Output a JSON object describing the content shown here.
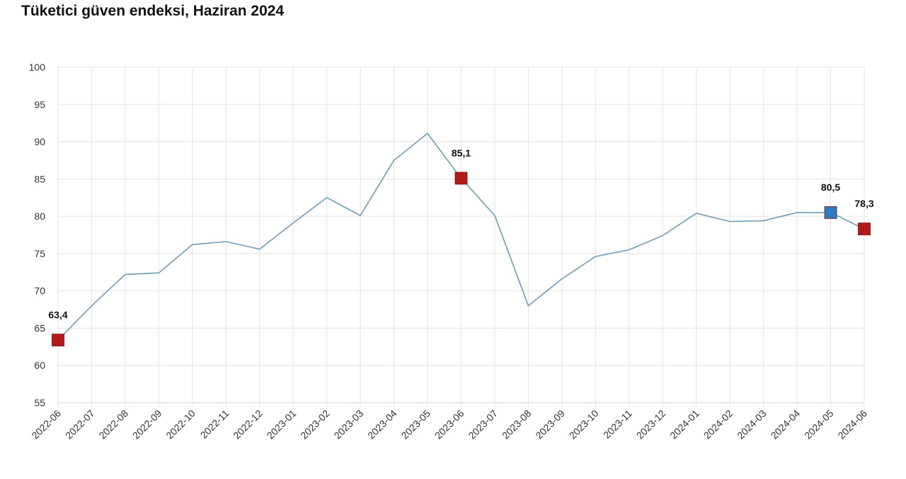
{
  "chart_data": {
    "type": "line",
    "title": "Tüketici güven endeksi, Haziran 2024",
    "xlabel": "",
    "ylabel": "",
    "ylim": [
      55,
      100
    ],
    "yticks": [
      55,
      60,
      65,
      70,
      75,
      80,
      85,
      90,
      95,
      100
    ],
    "grid": true,
    "categories": [
      "2022-06",
      "2022-07",
      "2022-08",
      "2022-09",
      "2022-10",
      "2022-11",
      "2022-12",
      "2023-01",
      "2023-02",
      "2023-03",
      "2023-04",
      "2023-05",
      "2023-06",
      "2023-07",
      "2023-08",
      "2023-09",
      "2023-10",
      "2023-11",
      "2023-12",
      "2024-01",
      "2024-02",
      "2024-03",
      "2024-04",
      "2024-05",
      "2024-06"
    ],
    "series": [
      {
        "name": "Tüketici güven endeksi",
        "color": "#6f9bb8",
        "values": [
          63.4,
          68.0,
          72.2,
          72.4,
          76.2,
          76.6,
          75.6,
          79.1,
          82.5,
          80.1,
          87.5,
          91.1,
          85.1,
          80.1,
          68.0,
          71.6,
          74.6,
          75.5,
          77.4,
          80.4,
          79.3,
          79.4,
          80.5,
          80.5,
          78.3
        ]
      }
    ],
    "highlights": [
      {
        "index": 0,
        "label": "63,4",
        "color": "#b31b1b"
      },
      {
        "index": 12,
        "label": "85,1",
        "color": "#b31b1b"
      },
      {
        "index": 23,
        "label": "80,5",
        "color": "#2e7bbf"
      },
      {
        "index": 24,
        "label": "78,3",
        "color": "#b31b1b"
      }
    ]
  }
}
